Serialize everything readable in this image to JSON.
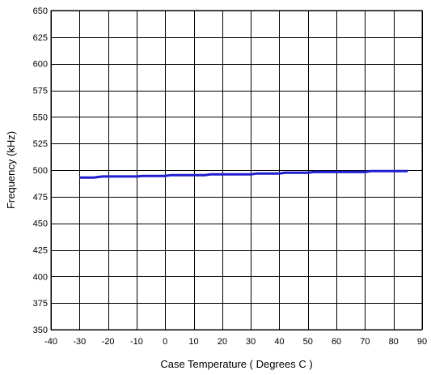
{
  "chart_data": {
    "type": "line",
    "title": "",
    "xlabel": "Case  Temperature ( Degrees C )",
    "ylabel": "Frequency (kHz)",
    "xlim": [
      -40,
      90
    ],
    "ylim": [
      350,
      650
    ],
    "x_ticks": [
      -40,
      -30,
      -20,
      -10,
      0,
      10,
      20,
      30,
      40,
      50,
      60,
      70,
      80,
      90
    ],
    "y_ticks": [
      350,
      375,
      400,
      425,
      450,
      475,
      500,
      525,
      550,
      575,
      600,
      625,
      650
    ],
    "grid": true,
    "legend": "none",
    "series": [
      {
        "color": "#1f1fd0",
        "x": [
          -30,
          -25,
          -22,
          -10,
          -8,
          0,
          2,
          14,
          16,
          30,
          32,
          40,
          42,
          50,
          52,
          70,
          72,
          85
        ],
        "y": [
          493,
          493,
          494,
          494,
          494.5,
          494.5,
          495.3,
          495.3,
          496,
          496,
          496.8,
          496.8,
          497.5,
          497.5,
          498.2,
          498.2,
          499,
          499
        ]
      }
    ]
  }
}
